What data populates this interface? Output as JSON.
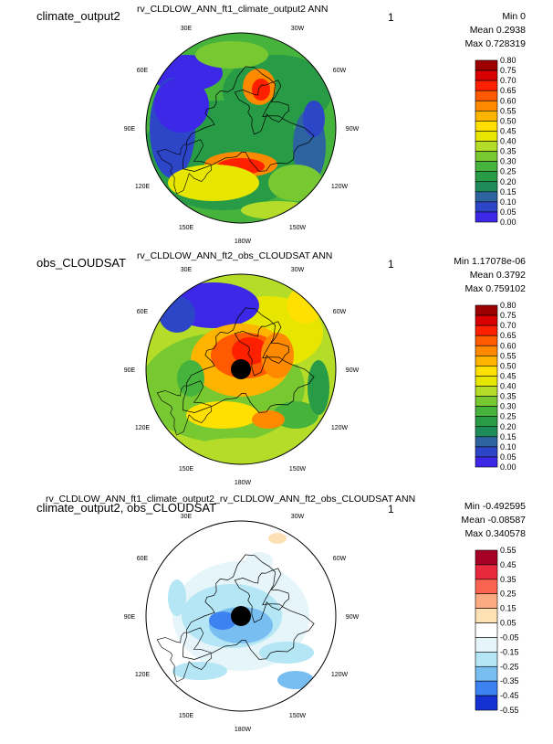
{
  "panels": [
    {
      "case_name": "climate_output2",
      "title": "rv_CLDLOW_ANN_ft1_climate_output2  ANN",
      "number": "1",
      "stats": {
        "min": "Min 0",
        "mean": "Mean 0.2938",
        "max": "Max 0.728319"
      }
    },
    {
      "case_name": "obs_CLOUDSAT",
      "title": "rv_CLDLOW_ANN_ft2_obs_CLOUDSAT  ANN",
      "number": "1",
      "stats": {
        "min": "Min 1.17078e-06",
        "mean": "Mean 0.3792",
        "max": "Max 0.759102"
      }
    },
    {
      "case_name": "climate_output2, obs_CLOUDSAT",
      "title": "rv_CLDLOW_ANN_ft1_climate_output2_rv_CLDLOW_ANN_ft2_obs_CLOUDSAT  ANN",
      "number": "1",
      "stats": {
        "min": "Min -0.492595",
        "mean": "Mean -0.08587",
        "max": "Max 0.340578"
      }
    }
  ],
  "longitude_labels": [
    "30E",
    "30W",
    "60E",
    "60W",
    "90E",
    "90W",
    "120E",
    "120W",
    "150E",
    "150W",
    "180W"
  ],
  "chart_data": [
    {
      "type": "heatmap",
      "title": "rv_CLDLOW_ANN_ft1_climate_output2  ANN",
      "projection": "polar stereographic, north pole",
      "colorbar": {
        "ticks": [
          "0.80",
          "0.75",
          "0.70",
          "0.65",
          "0.60",
          "0.55",
          "0.50",
          "0.45",
          "0.40",
          "0.35",
          "0.30",
          "0.25",
          "0.20",
          "0.15",
          "0.10",
          "0.05",
          "0.00"
        ],
        "colors": [
          "#9c0000",
          "#d80000",
          "#ff2000",
          "#ff5a00",
          "#ff8a00",
          "#ffb400",
          "#ffe000",
          "#e6e600",
          "#b4dc28",
          "#78c832",
          "#46b43c",
          "#289b46",
          "#1e8c5a",
          "#2d64a0",
          "#2d46c8",
          "#3c28e6"
        ]
      },
      "min": 0,
      "mean": 0.2938,
      "max": 0.728319
    },
    {
      "type": "heatmap",
      "title": "rv_CLDLOW_ANN_ft2_obs_CLOUDSAT  ANN",
      "projection": "polar stereographic, north pole",
      "colorbar": {
        "ticks": [
          "0.80",
          "0.75",
          "0.70",
          "0.65",
          "0.60",
          "0.55",
          "0.50",
          "0.45",
          "0.40",
          "0.35",
          "0.30",
          "0.25",
          "0.20",
          "0.15",
          "0.10",
          "0.05",
          "0.00"
        ],
        "colors": [
          "#9c0000",
          "#d80000",
          "#ff2000",
          "#ff5a00",
          "#ff8a00",
          "#ffb400",
          "#ffe000",
          "#e6e600",
          "#b4dc28",
          "#78c832",
          "#46b43c",
          "#289b46",
          "#1e8c5a",
          "#2d64a0",
          "#2d46c8",
          "#3c28e6"
        ]
      },
      "min": 1.17078e-06,
      "mean": 0.3792,
      "max": 0.759102
    },
    {
      "type": "heatmap",
      "title": "rv_CLDLOW_ANN_ft1_climate_output2_rv_CLDLOW_ANN_ft2_obs_CLOUDSAT  ANN",
      "projection": "polar stereographic, north pole",
      "colorbar": {
        "ticks": [
          "0.55",
          "0.45",
          "0.35",
          "0.25",
          "0.15",
          "0.05",
          "-0.05",
          "-0.15",
          "-0.25",
          "-0.35",
          "-0.45",
          "-0.55"
        ],
        "colors": [
          "#a50026",
          "#e8283c",
          "#fa6450",
          "#fcaa82",
          "#fde0b4",
          "#ffffff",
          "#e6f5fa",
          "#b4e6f5",
          "#78bef0",
          "#3c82f0",
          "#1432d2"
        ]
      },
      "min": -0.492595,
      "mean": -0.08587,
      "max": 0.340578
    }
  ]
}
